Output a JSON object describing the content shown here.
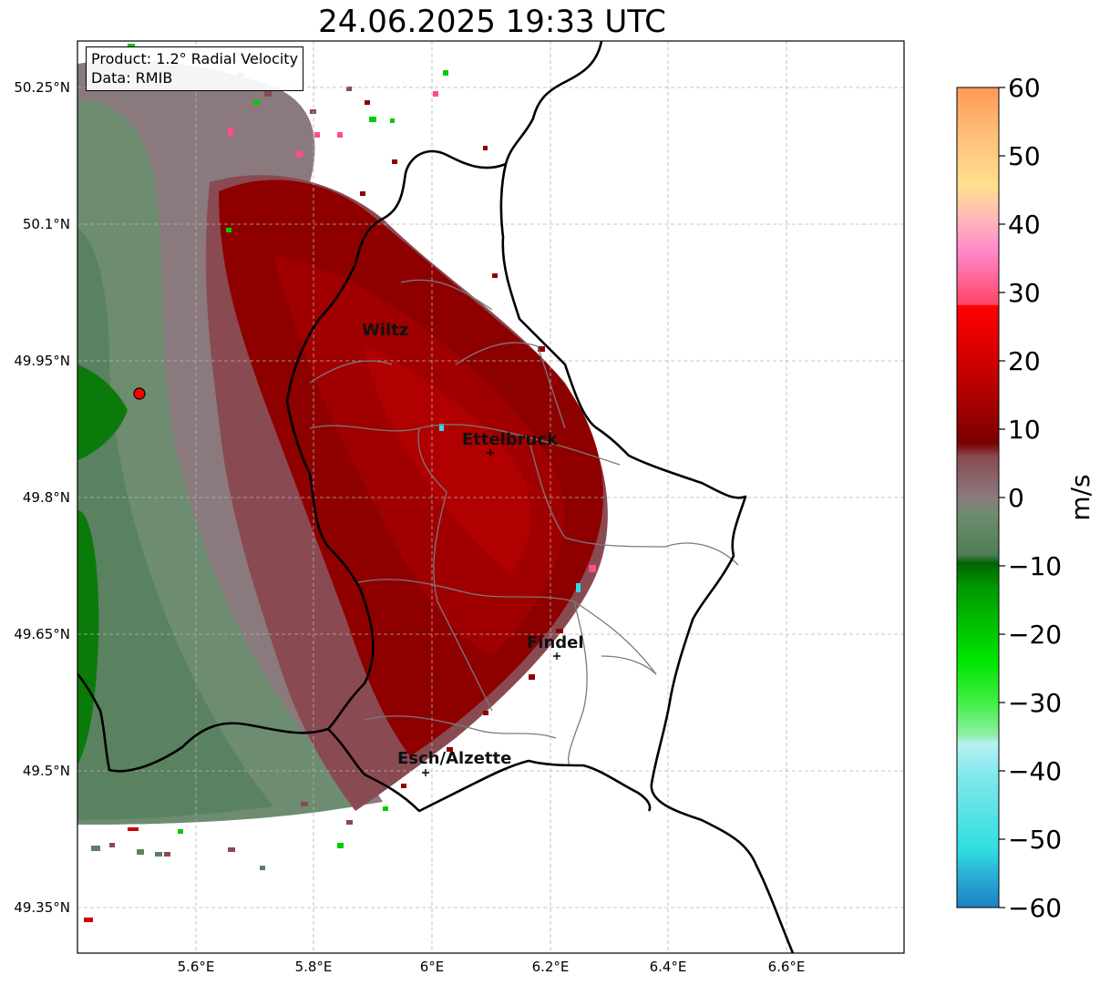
{
  "title": "24.06.2025 19:33 UTC",
  "info": {
    "product": "Product: 1.2° Radial Velocity",
    "source": "Data: RMIB"
  },
  "map": {
    "lon_range": [
      5.43,
      6.8
    ],
    "lat_range": [
      49.3,
      50.3
    ],
    "lat_ticks": [
      {
        "value": 50.25,
        "label": "50.25°N"
      },
      {
        "value": 50.1,
        "label": "50.1°N"
      },
      {
        "value": 49.95,
        "label": "49.95°N"
      },
      {
        "value": 49.8,
        "label": "49.8°N"
      },
      {
        "value": 49.65,
        "label": "49.65°N"
      },
      {
        "value": 49.5,
        "label": "49.5°N"
      },
      {
        "value": 49.35,
        "label": "49.35°N"
      }
    ],
    "lon_ticks": [
      {
        "value": 5.6,
        "label": "5.6°E"
      },
      {
        "value": 5.8,
        "label": "5.8°E"
      },
      {
        "value": 6.0,
        "label": "6°E"
      },
      {
        "value": 6.2,
        "label": "6.2°E"
      },
      {
        "value": 6.4,
        "label": "6.4°E"
      },
      {
        "value": 6.6,
        "label": "6.6°E"
      }
    ],
    "radar_site": {
      "lon": 5.505,
      "lat": 49.914
    },
    "cities": [
      {
        "name": "Wiltz",
        "lon": 5.93,
        "lat": 49.97
      },
      {
        "name": "Ettelbruck",
        "lon": 6.1,
        "lat": 49.85
      },
      {
        "name": "Findel",
        "lon": 6.21,
        "lat": 49.63
      },
      {
        "name": "Esch/Alzette",
        "lon": 5.99,
        "lat": 49.5
      }
    ]
  },
  "colorbar": {
    "label": "m/s",
    "min": -60,
    "max": 60,
    "ticks": [
      {
        "value": 60,
        "label": "60"
      },
      {
        "value": 50,
        "label": "50"
      },
      {
        "value": 40,
        "label": "40"
      },
      {
        "value": 30,
        "label": "30"
      },
      {
        "value": 20,
        "label": "20"
      },
      {
        "value": 10,
        "label": "10"
      },
      {
        "value": 0,
        "label": "0"
      },
      {
        "value": -10,
        "label": "−10"
      },
      {
        "value": -20,
        "label": "−20"
      },
      {
        "value": -30,
        "label": "−30"
      },
      {
        "value": -40,
        "label": "−40"
      },
      {
        "value": -50,
        "label": "−50"
      },
      {
        "value": -60,
        "label": "−60"
      }
    ],
    "colors": {
      "approaching_strong": "#1f7fc4",
      "approaching_cyan": "#2fdde0",
      "approaching_lightcyan": "#b8f0f3",
      "approaching_lightgreen": "#8ef0a8",
      "approaching_green": "#00e600",
      "approaching_darkgreen": "#006400",
      "near_zero_green": "#5a8260",
      "near_zero_grey": "#8a7a7e",
      "receding_mauve": "#8a4a52",
      "receding_darkred": "#7a0000",
      "receding_red": "#ff0000",
      "receding_pink": "#ff88cc",
      "receding_peach": "#ffe08f",
      "receding_orange": "#ff9955"
    }
  }
}
